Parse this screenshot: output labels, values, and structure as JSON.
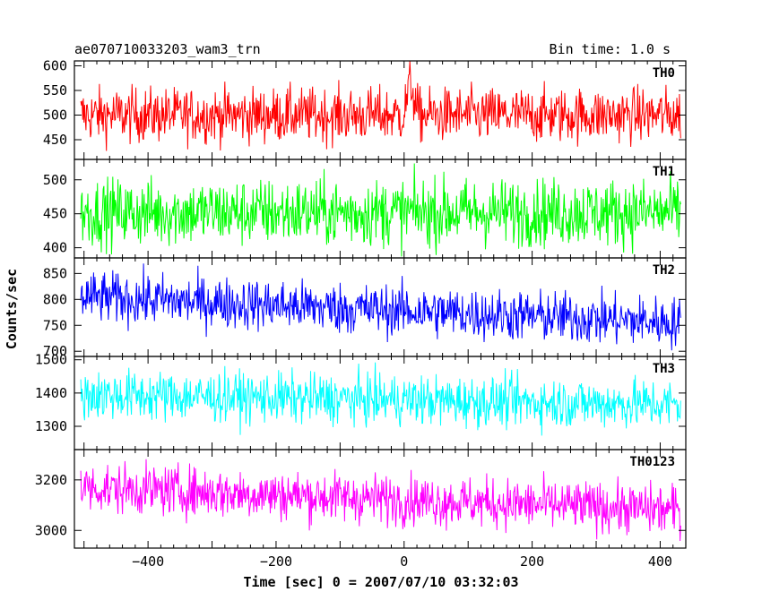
{
  "title_left": "ae070710033203_wam3_trn",
  "title_right": "Bin time: 1.0 s",
  "ylabel": "Counts/sec",
  "xlabel": "Time [sec] 0 = 2007/07/10 03:32:03",
  "chart_data": [
    {
      "type": "line",
      "name": "TH0",
      "color": "#ff0000",
      "x_range": [
        -515,
        440
      ],
      "ylim": [
        410,
        610
      ],
      "yticks": [
        450,
        500,
        550,
        600
      ],
      "series": [
        {
          "x_start": -505,
          "x_end": 432,
          "mean": 500,
          "spread": 28,
          "feature": "spike to ~605 near t=10"
        }
      ]
    },
    {
      "type": "line",
      "name": "TH1",
      "color": "#00ff00",
      "x_range": [
        -515,
        440
      ],
      "ylim": [
        385,
        530
      ],
      "yticks": [
        400,
        450,
        500
      ],
      "series": [
        {
          "x_start": -505,
          "x_end": 432,
          "mean": 452,
          "spread": 25
        }
      ]
    },
    {
      "type": "line",
      "name": "TH2",
      "color": "#0000ff",
      "x_range": [
        -515,
        440
      ],
      "ylim": [
        690,
        880
      ],
      "yticks": [
        700,
        750,
        800,
        850
      ],
      "series": [
        {
          "x_start": -505,
          "x_end": 432,
          "mean_start": 805,
          "mean_end": 755,
          "spread": 25
        }
      ]
    },
    {
      "type": "line",
      "name": "TH3",
      "color": "#00ffff",
      "x_range": [
        -515,
        440
      ],
      "ylim": [
        1230,
        1510
      ],
      "yticks": [
        1300,
        1400,
        1500
      ],
      "series": [
        {
          "x_start": -505,
          "x_end": 432,
          "mean_start": 1395,
          "mean_end": 1365,
          "spread": 38
        }
      ]
    },
    {
      "type": "line",
      "name": "TH0123",
      "color": "#ff00ff",
      "x_range": [
        -515,
        440
      ],
      "ylim": [
        2930,
        3320
      ],
      "yticks": [
        3000,
        3200
      ],
      "xticks": [
        -400,
        -200,
        0,
        200,
        400
      ],
      "series": [
        {
          "x_start": -505,
          "x_end": 432,
          "mean_start": 3170,
          "mean_end": 3080,
          "spread": 50
        }
      ]
    }
  ]
}
